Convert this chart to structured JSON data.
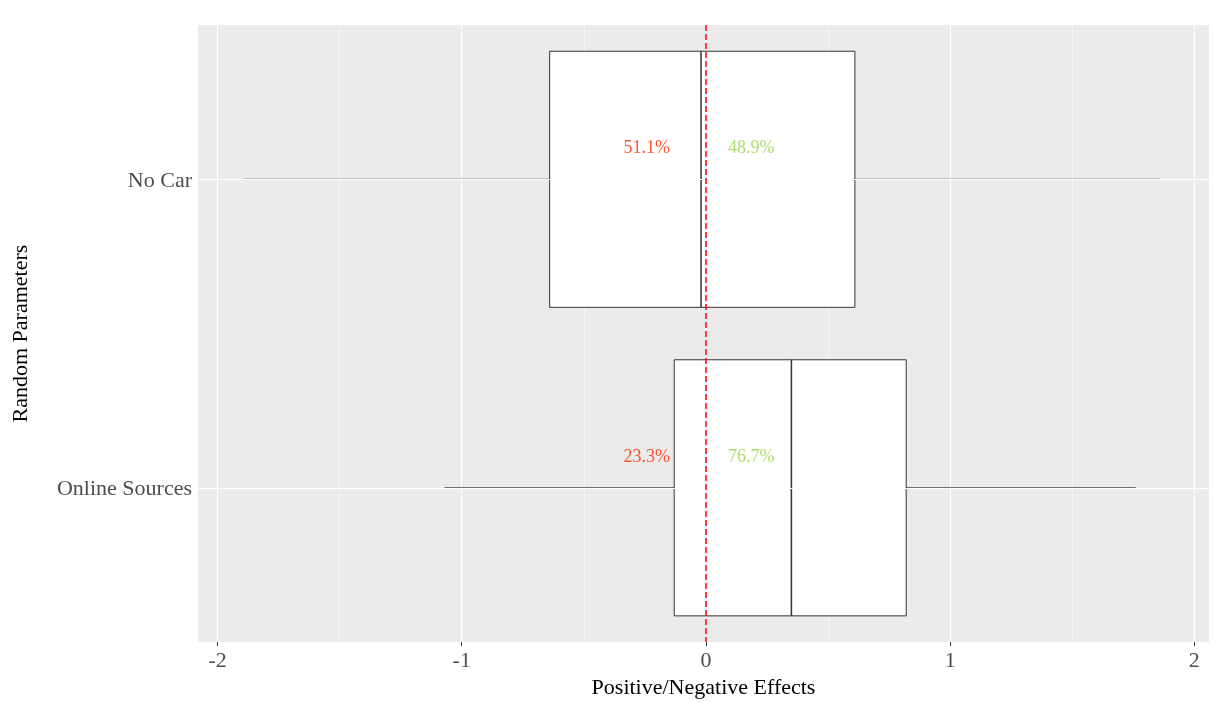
{
  "chart_data": {
    "type": "box",
    "orientation": "horizontal",
    "xlabel": "Positive/Negative Effects",
    "ylabel": "Random Parameters",
    "categories": [
      "No Car",
      "Online Sources"
    ],
    "boxes": [
      {
        "low": -1.89,
        "q1": -0.64,
        "median": -0.02,
        "q3": 0.61,
        "high": 1.86
      },
      {
        "low": -1.07,
        "q1": -0.13,
        "median": 0.35,
        "q3": 0.82,
        "high": 1.76
      }
    ],
    "xlim": [
      -2.08,
      2.06
    ],
    "xticks": [
      -2,
      -1,
      0,
      1,
      2
    ],
    "grid": true,
    "ref_lines": [
      {
        "axis": "x",
        "value": 0,
        "color": "#ff0000",
        "line_style": "dashed"
      }
    ],
    "annotations": [
      "51.1%",
      "48.9%",
      "23.3%",
      "76.7%"
    ]
  }
}
